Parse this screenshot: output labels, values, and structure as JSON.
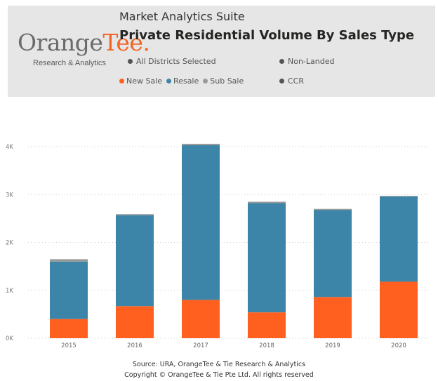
{
  "header": {
    "logo_main": "Orange",
    "logo_accent": "Tee",
    "logo_mark": ".",
    "logo_sub": "Research & Analytics",
    "suite": "Market Analytics Suite",
    "title": "Private Residential Volume By Sales Type",
    "filters": [
      {
        "label": "All Districts Selected",
        "icon": "bullet-dot"
      },
      {
        "label": "Non-Landed",
        "icon": "bullet-dot"
      },
      {
        "label": "CCR",
        "icon": "bullet-dot"
      }
    ],
    "dot_color": "#555555"
  },
  "legend": [
    {
      "label": "New Sale",
      "color": "#ff5f1f"
    },
    {
      "label": "Resale",
      "color": "#3d85a8"
    },
    {
      "label": "Sub Sale",
      "color": "#999999"
    }
  ],
  "chart_data": {
    "type": "bar",
    "stacked": true,
    "categories": [
      "2015",
      "2016",
      "2017",
      "2018",
      "2019",
      "2020"
    ],
    "series": [
      {
        "name": "New Sale",
        "color": "#ff5f1f",
        "values": [
          400,
          670,
          800,
          540,
          860,
          1180
        ]
      },
      {
        "name": "Resale",
        "color": "#3d85a8",
        "values": [
          1200,
          1900,
          3230,
          2280,
          1820,
          1780
        ]
      },
      {
        "name": "Sub Sale",
        "color": "#999999",
        "values": [
          50,
          20,
          30,
          30,
          20,
          10
        ]
      }
    ],
    "ylim": [
      0,
      4000
    ],
    "yticks": [
      0,
      1000,
      2000,
      3000,
      4000
    ],
    "ytick_labels": [
      "0K",
      "1K",
      "2K",
      "3K",
      "4K"
    ],
    "grid": true,
    "legend_position": "top-left"
  },
  "footer": {
    "source": "Source: URA, OrangeTee & Tie Research & Analytics",
    "copyright": "Copyright © OrangeTee & Tie Pte Ltd. All rights reserved"
  }
}
